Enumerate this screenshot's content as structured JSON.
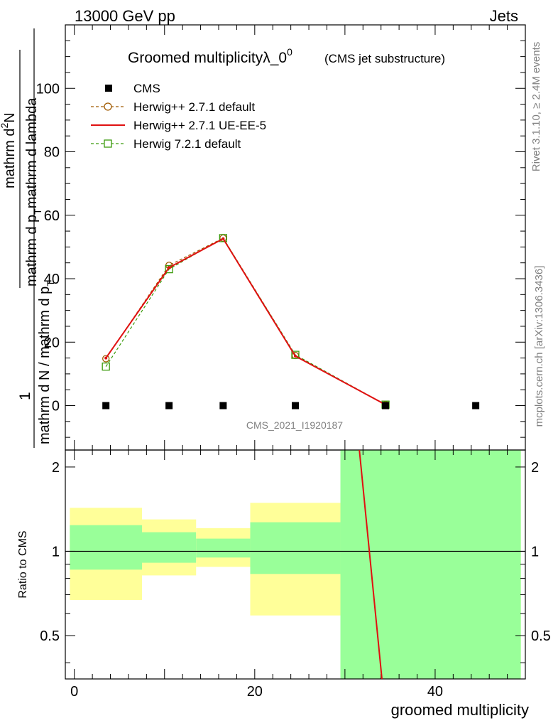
{
  "header": {
    "left": "13000 GeV pp",
    "right": "Jets"
  },
  "side_labels": {
    "rivet": "Rivet 3.1.10, ≥ 2.4M events",
    "mcplots": "mcplots.cern.ch [arXiv:1306.3436]"
  },
  "watermark": "CMS_2021_I1920187",
  "chart_data": [
    {
      "type": "line",
      "title": "Groomed multiplicityλ_0",
      "title_superscript": "0",
      "subtitle": "(CMS jet substructure)",
      "ylabel_numerator": "mathrm d²N",
      "ylabel_numerator_parts": {
        "top": "mathrm d",
        "sup": "2",
        "rest": "N"
      },
      "ylabel_numerator_denominator": "mathrm d p_T mathrm d lambda",
      "ylabel_numerator_denominator_parts": {
        "a": "mathrm d p",
        "sub": "T",
        "b": "mathrm d lambda"
      },
      "ylabel_prefix": "1",
      "ylabel_denominator": "mathrm d N / mathrm d p_T",
      "ylabel_denominator_parts": {
        "a": "mathrm d N / mathrm d p",
        "sub": "T"
      },
      "xlim": [
        -1,
        50
      ],
      "ylim": [
        -14,
        120
      ],
      "yticks": [
        0,
        20,
        40,
        60,
        80,
        100
      ],
      "legend_position": "top-left",
      "series": [
        {
          "name": "CMS",
          "color": "#000000",
          "marker": "square",
          "x": [
            3.5,
            10.5,
            16.5,
            24.5,
            34.5,
            44.5
          ],
          "y": [
            0,
            0,
            0,
            0,
            0,
            0
          ]
        },
        {
          "name": "Herwig++ 2.7.1 default",
          "color": "#a05a00",
          "marker": "circle",
          "dash": true,
          "x": [
            3.5,
            10.5,
            16.5,
            24.5,
            34.5
          ],
          "y": [
            14.8,
            44.2,
            52.8,
            15.8,
            0.3
          ]
        },
        {
          "name": "Herwig++ 2.7.1 UE-EE-5",
          "color": "#e01010",
          "marker": "none",
          "dash": false,
          "x": [
            3.5,
            10.5,
            16.5,
            24.5,
            34.5
          ],
          "y": [
            15.0,
            43.5,
            52.6,
            15.6,
            0.3
          ]
        },
        {
          "name": "Herwig 7.2.1 default",
          "color": "#3a9a0a",
          "marker": "open-square",
          "dash": true,
          "x": [
            3.5,
            10.5,
            16.5,
            24.5,
            34.5
          ],
          "y": [
            12.3,
            43.0,
            52.8,
            16.0,
            0.3
          ]
        }
      ]
    },
    {
      "type": "area",
      "ylabel": "Ratio to CMS",
      "xlabel": "groomed multiplicity",
      "xlim": [
        -1,
        50
      ],
      "ylim": [
        0.35,
        2.3
      ],
      "xticks": [
        0,
        20,
        40
      ],
      "yticks": [
        0.5,
        1,
        2
      ],
      "bands": [
        {
          "x0": -0.5,
          "x1": 7.5,
          "yellow": [
            0.67,
            1.43
          ],
          "green": [
            0.86,
            1.24
          ]
        },
        {
          "x0": 7.5,
          "x1": 13.5,
          "yellow": [
            0.82,
            1.3
          ],
          "green": [
            0.91,
            1.17
          ]
        },
        {
          "x0": 13.5,
          "x1": 19.5,
          "yellow": [
            0.88,
            1.21
          ],
          "green": [
            0.95,
            1.11
          ]
        },
        {
          "x0": 19.5,
          "x1": 29.5,
          "yellow": [
            0.59,
            1.49
          ],
          "green": [
            0.83,
            1.27
          ]
        },
        {
          "x0": 29.5,
          "x1": 49.5,
          "yellow": [
            0.35,
            2.3
          ],
          "green": [
            0.35,
            2.3
          ]
        }
      ],
      "ratio_line": {
        "color": "#e01010",
        "x": [
          31.6,
          34.1
        ],
        "y": [
          2.3,
          0.35
        ]
      }
    }
  ]
}
